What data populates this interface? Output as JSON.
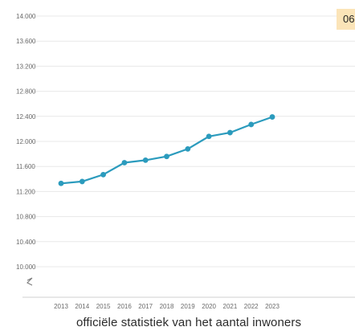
{
  "chart_data": {
    "type": "line",
    "title": "",
    "xlabel": "",
    "ylabel": "",
    "x": [
      "2013",
      "2014",
      "2015",
      "2016",
      "2017",
      "2018",
      "2019",
      "2020",
      "2021",
      "2022",
      "2023"
    ],
    "series": [
      {
        "values": [
          11330,
          11360,
          11470,
          11660,
          11700,
          11760,
          11880,
          12080,
          12140,
          12270,
          12390
        ]
      }
    ],
    "yticks": [
      "14.000",
      "13.600",
      "13.200",
      "12.800",
      "12.400",
      "12.000",
      "11.600",
      "11.200",
      "10.800",
      "10.400",
      "10.000"
    ],
    "xticks": [
      "2013",
      "2014",
      "2015",
      "2016",
      "2017",
      "2018",
      "2019",
      "2020",
      "2021",
      "2022",
      "2023"
    ],
    "ylim": [
      10000,
      14000
    ],
    "grid": true,
    "color": "#2b9bbd"
  },
  "badge_text": "06",
  "caption": "officiële statistiek van het aantal inwoners",
  "axis_break_icon": "axis-break-zigzag"
}
